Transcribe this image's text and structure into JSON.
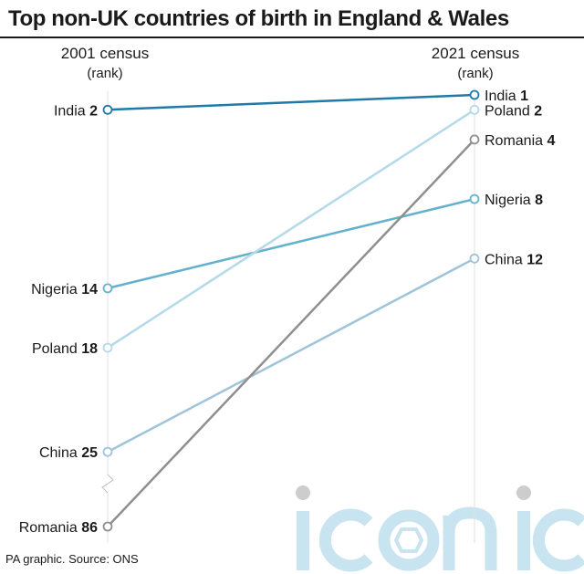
{
  "chart_data": {
    "type": "slope",
    "title": "Top non-UK countries of birth in England & Wales",
    "left_column": {
      "heading": "2001 census",
      "subheading": "(rank)"
    },
    "right_column": {
      "heading": "2021 census",
      "subheading": "(rank)"
    },
    "series": [
      {
        "name": "India",
        "rank_2001": 2,
        "rank_2021": 1,
        "color": "#1f7aa8"
      },
      {
        "name": "Poland",
        "rank_2001": 18,
        "rank_2021": 2,
        "color": "#b4d9e8"
      },
      {
        "name": "Romania",
        "rank_2001": 86,
        "rank_2021": 4,
        "color": "#8f8f8f"
      },
      {
        "name": "Nigeria",
        "rank_2001": 14,
        "rank_2021": 8,
        "color": "#62b1cf"
      },
      {
        "name": "China",
        "rank_2001": 25,
        "rank_2021": 12,
        "color": "#9fc3d9"
      }
    ],
    "y_scale": "rank (axis break below 25)"
  },
  "source": "PA graphic. Source: ONS",
  "watermark": {
    "text": "iconic",
    "color": "#b6dcec",
    "dot_color": "#bdbdbd"
  }
}
